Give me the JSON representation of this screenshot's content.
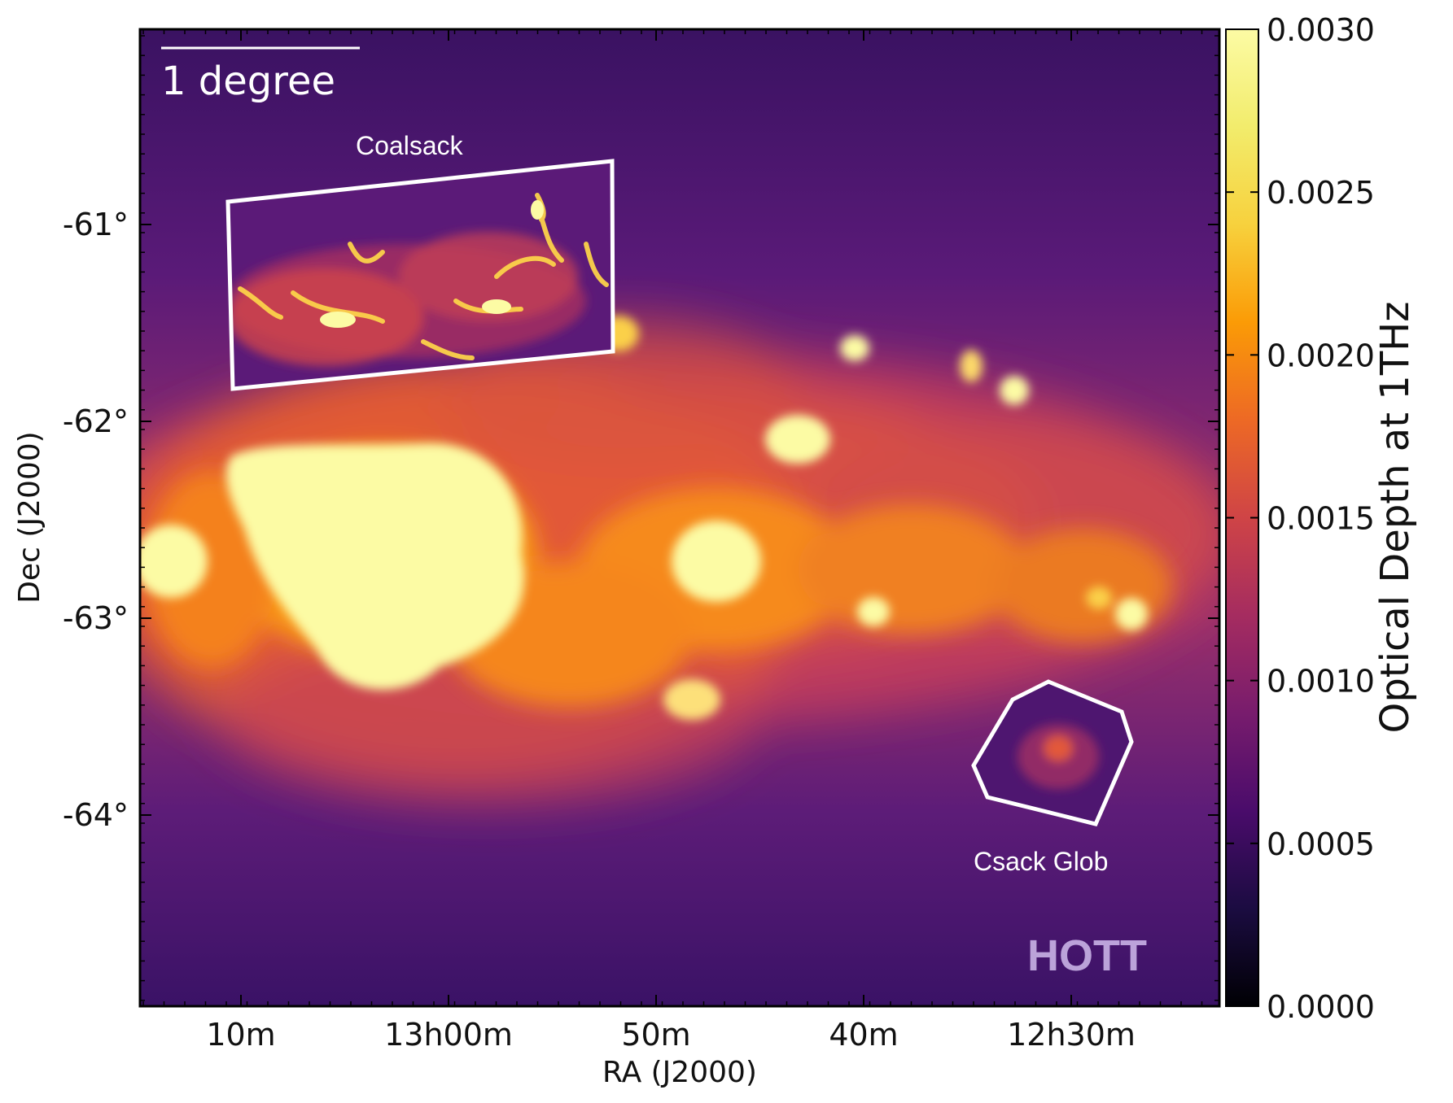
{
  "chart_data": {
    "type": "heatmap",
    "title": "",
    "xlabel": "RA (J2000)",
    "ylabel": "Dec (J2000)",
    "x_ticks": [
      "10m",
      "13h00m",
      "50m",
      "40m",
      "12h30m"
    ],
    "y_ticks": [
      "-61°",
      "-62°",
      "-63°",
      "-64°"
    ],
    "colorbar": {
      "label": "Optical Depth at 1THz",
      "ticks": [
        "0.0000",
        "0.0005",
        "0.0010",
        "0.0015",
        "0.0020",
        "0.0025",
        "0.0030"
      ],
      "range": [
        0.0,
        0.003
      ],
      "colormap": "inferno"
    },
    "annotations": {
      "scale_bar": "1 degree",
      "regions": [
        "Coalsack",
        "Csack Glob"
      ],
      "watermark": "HOTT"
    },
    "colors": {
      "background_level": "#4a1a7a",
      "saturated_level": "#fcfba4",
      "region_outline": "#ffffff"
    }
  }
}
